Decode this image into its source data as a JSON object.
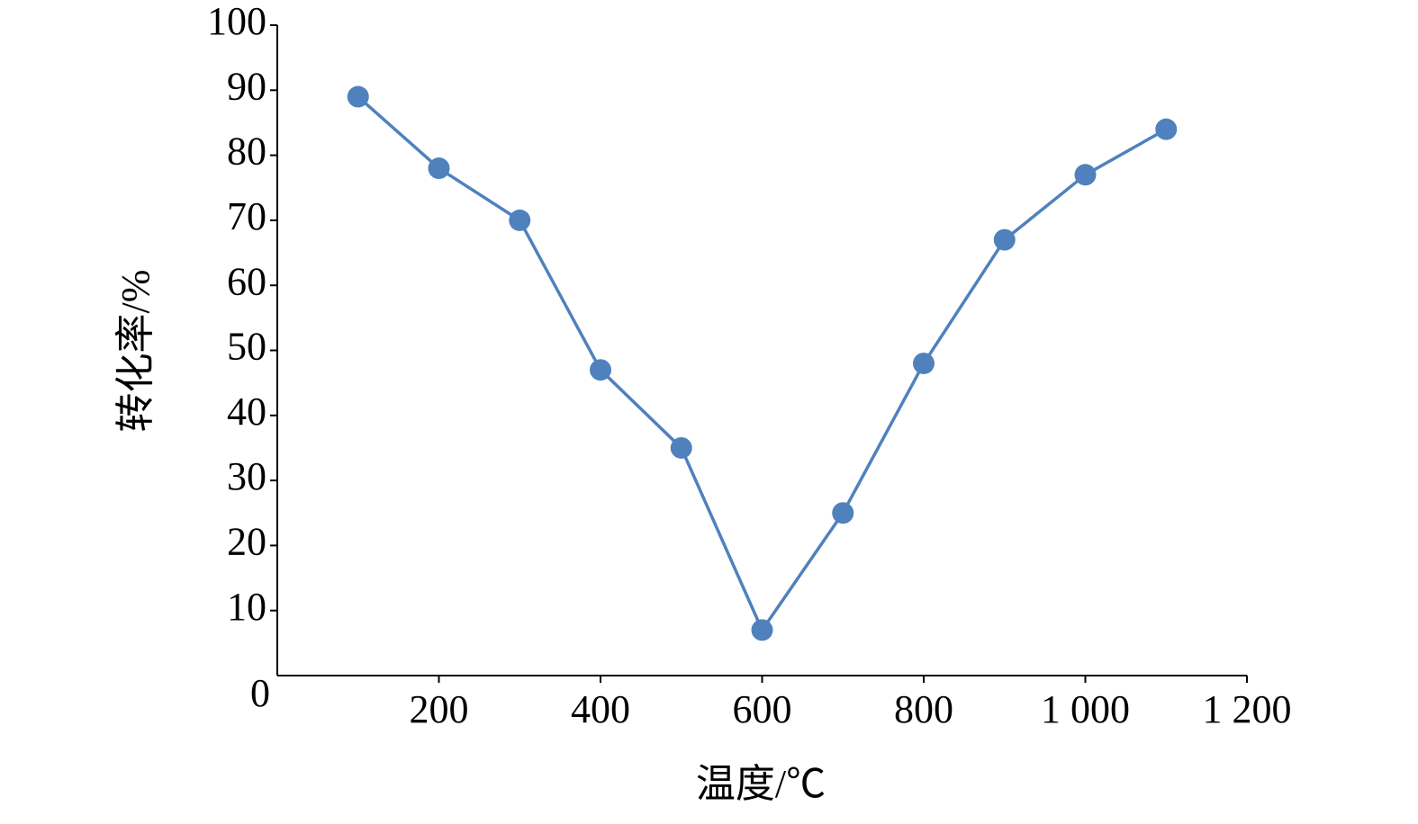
{
  "chart_data": {
    "type": "line",
    "x_label": "温度/℃",
    "y_label": "转化率/%",
    "x": [
      100,
      200,
      300,
      400,
      500,
      600,
      700,
      800,
      900,
      1000,
      1100
    ],
    "series": [
      {
        "color": "#4f81bd",
        "values": [
          89,
          78,
          70,
          47,
          35,
          7,
          25,
          48,
          67,
          77,
          84
        ]
      }
    ],
    "xlim": [
      0,
      1200
    ],
    "xticks": [
      200,
      400,
      600,
      800,
      {
        "value": 1000,
        "label": "1 000"
      },
      {
        "value": 1200,
        "label": "1 200"
      }
    ],
    "ylim": [
      0,
      100
    ],
    "yticks": [
      0,
      10,
      20,
      30,
      40,
      50,
      60,
      70,
      80,
      90,
      100
    ],
    "grid": false,
    "markers": true
  }
}
